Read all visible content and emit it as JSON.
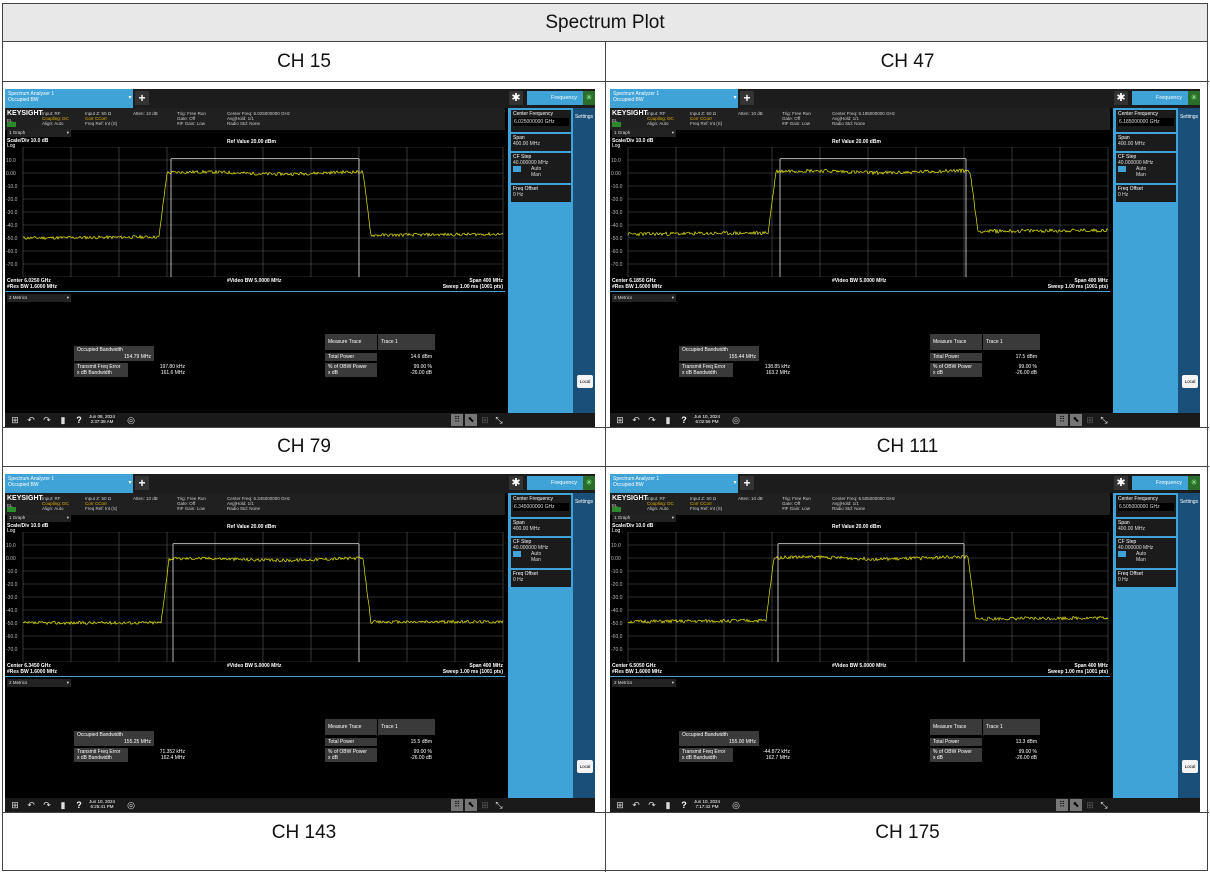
{
  "table": {
    "title": "Spectrum Plot",
    "channels": [
      "CH 15",
      "CH 47",
      "CH 79",
      "CH 111",
      "CH 143",
      "CH 175"
    ]
  },
  "common": {
    "tab_title": "Spectrum Analyzer 1",
    "tab_subtitle": "Occupied BW",
    "mode_label": "Frequency",
    "brand": "KEYSIGHT",
    "brand_sub": "EL",
    "input_line1": "Input: RF",
    "input_line2": "Coupling: DC",
    "input_line3": "Align: Auto",
    "imp_line1": "Input Z: 50 Ω",
    "imp_line2": "Corr CCorr",
    "imp_line3": "Freq Ref: Int (S)",
    "atten": "Atten: 10 dB",
    "trig_line1": "Trig: Free Run",
    "trig_line2": "Gate: Off",
    "trig_line3": "#IF Gain: Low",
    "avg": "Avg|Hold: 1/1",
    "radio_std": "Radio Std: None",
    "graph_select": "1 Graph",
    "scale_div": "Scale/Div 10.0 dB",
    "log": "Log",
    "ref_value": "Ref Value 20.00 dBm",
    "y_ticks": [
      "10.0",
      "0.00",
      "-10.0",
      "-20.0",
      "-30.0",
      "-40.0",
      "-50.0",
      "-60.0",
      "-70.0"
    ],
    "video_bw": "#Video BW 5.0000 MHz",
    "res_bw": "#Res BW 1.6000 MHz",
    "span": "Span 400 MHz",
    "sweep": "Sweep 1.00 ms (1001 pts)",
    "metrics_select": "2 Metrics",
    "occ_bw_label": "Occupied Bandwidth",
    "tfe_label": "Transmit Freq Error",
    "xdb_bw_label": "x dB Bandwidth",
    "measure_trace_label": "Measure Trace",
    "measure_trace_value": "Trace 1",
    "total_power_label": "Total Power",
    "obw_power_label": "% of OBW Power",
    "xdb_label": "x dB",
    "obw_power_value": "99.00 %",
    "xdb_value": "-26.00 dB",
    "softkeys": {
      "center_freq": "Center Frequency",
      "span_label": "Span",
      "span_value": "400.00 MHz",
      "cf_step": "CF Step",
      "cf_step_value": "40.000000 MHz",
      "auto": "Auto",
      "man": "Man",
      "freq_offset": "Freq Offset",
      "freq_offset_value": "0 Hz",
      "settings": "Settings",
      "local": "Local"
    }
  },
  "screens": [
    {
      "center_freq_header": "Center Freq: 6.025000000 GHz",
      "center_freq_value": "6.025000000 GHz",
      "center_footer": "Center 6.0250 GHz",
      "occ_bw": "154.79 MHz",
      "tfe": "197.80 kHz",
      "xdb_bw": "161.6 MHz",
      "total_power": "14.6 dBm",
      "date": "Jun 08, 2024",
      "time": "2:37:38 AM"
    },
    {
      "center_freq_header": "Center Freq: 6.185000000 GHz",
      "center_freq_value": "6.185000000 GHz",
      "center_footer": "Center 6.1850 GHz",
      "occ_bw": "155.44 MHz",
      "tfe": "138.85 kHz",
      "xdb_bw": "163.2 MHz",
      "total_power": "17.5 dBm",
      "date": "Jun 10, 2024",
      "time": "6:02:56 PM"
    },
    {
      "center_freq_header": "Center Freq: 6.345000000 GHz",
      "center_freq_value": "6.345000000 GHz",
      "center_footer": "Center 6.3450 GHz",
      "occ_bw": "155.25 MHz",
      "tfe": "71.352 kHz",
      "xdb_bw": "162.4 MHz",
      "total_power": "15.5 dBm",
      "date": "Jun 10, 2024",
      "time": "6:25:41 PM"
    },
    {
      "center_freq_header": "Center Freq: 6.505000000 GHz",
      "center_freq_value": "6.505000000 GHz",
      "center_footer": "Center 6.5050 GHz",
      "occ_bw": "155.00 MHz",
      "tfe": "-44.872 kHz",
      "xdb_bw": "162.7 MHz",
      "total_power": "13.3 dBm",
      "date": "Jun 10, 2024",
      "time": "7:17:42 PM"
    }
  ],
  "colors": {
    "accent_blue": "#3fa3d8",
    "trace": "#e8e800",
    "grid": "#6a6a6a",
    "background": "#000000"
  }
}
